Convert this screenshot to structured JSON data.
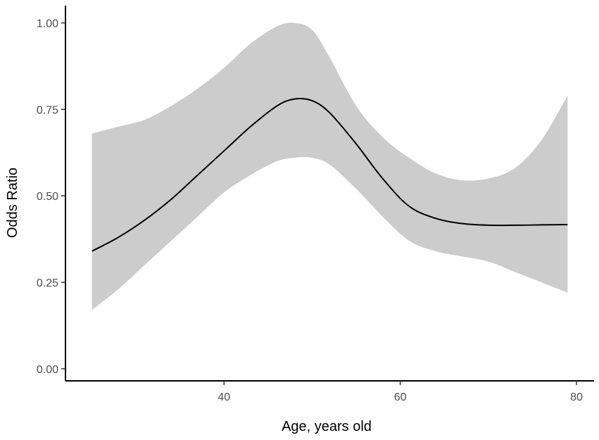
{
  "chart_data": {
    "type": "line",
    "title": "",
    "xlabel": "Age, years old",
    "ylabel": "Odds Ratio",
    "xlim": [
      22,
      82
    ],
    "ylim": [
      -0.035,
      1.05
    ],
    "grid": false,
    "x_ticks": [
      40,
      60,
      80
    ],
    "x_tick_labels": [
      "40",
      "60",
      "80"
    ],
    "y_ticks": [
      0.0,
      0.25,
      0.5,
      0.75,
      1.0
    ],
    "y_tick_labels": [
      "0.00",
      "0.25",
      "0.50",
      "0.75",
      "1.00"
    ],
    "series": [
      {
        "x": [
          25,
          28,
          31,
          34,
          37,
          40,
          43,
          46,
          48,
          50,
          52,
          55,
          58,
          61,
          64,
          67,
          70,
          73,
          76,
          79
        ],
        "y": [
          0.34,
          0.38,
          0.43,
          0.49,
          0.56,
          0.63,
          0.7,
          0.76,
          0.78,
          0.775,
          0.74,
          0.65,
          0.55,
          0.47,
          0.435,
          0.42,
          0.415,
          0.415,
          0.416,
          0.417
        ],
        "lower": [
          0.17,
          0.23,
          0.3,
          0.37,
          0.44,
          0.51,
          0.56,
          0.6,
          0.61,
          0.61,
          0.59,
          0.52,
          0.44,
          0.37,
          0.34,
          0.325,
          0.31,
          0.28,
          0.25,
          0.22
        ],
        "upper": [
          0.68,
          0.7,
          0.72,
          0.76,
          0.81,
          0.87,
          0.94,
          0.99,
          1.0,
          0.98,
          0.9,
          0.76,
          0.67,
          0.61,
          0.565,
          0.545,
          0.55,
          0.58,
          0.66,
          0.79
        ]
      }
    ],
    "colors": {
      "line": "#000000",
      "band": "#cccccc",
      "axis": "#000000",
      "tick_text": "#4d4d4d"
    }
  }
}
